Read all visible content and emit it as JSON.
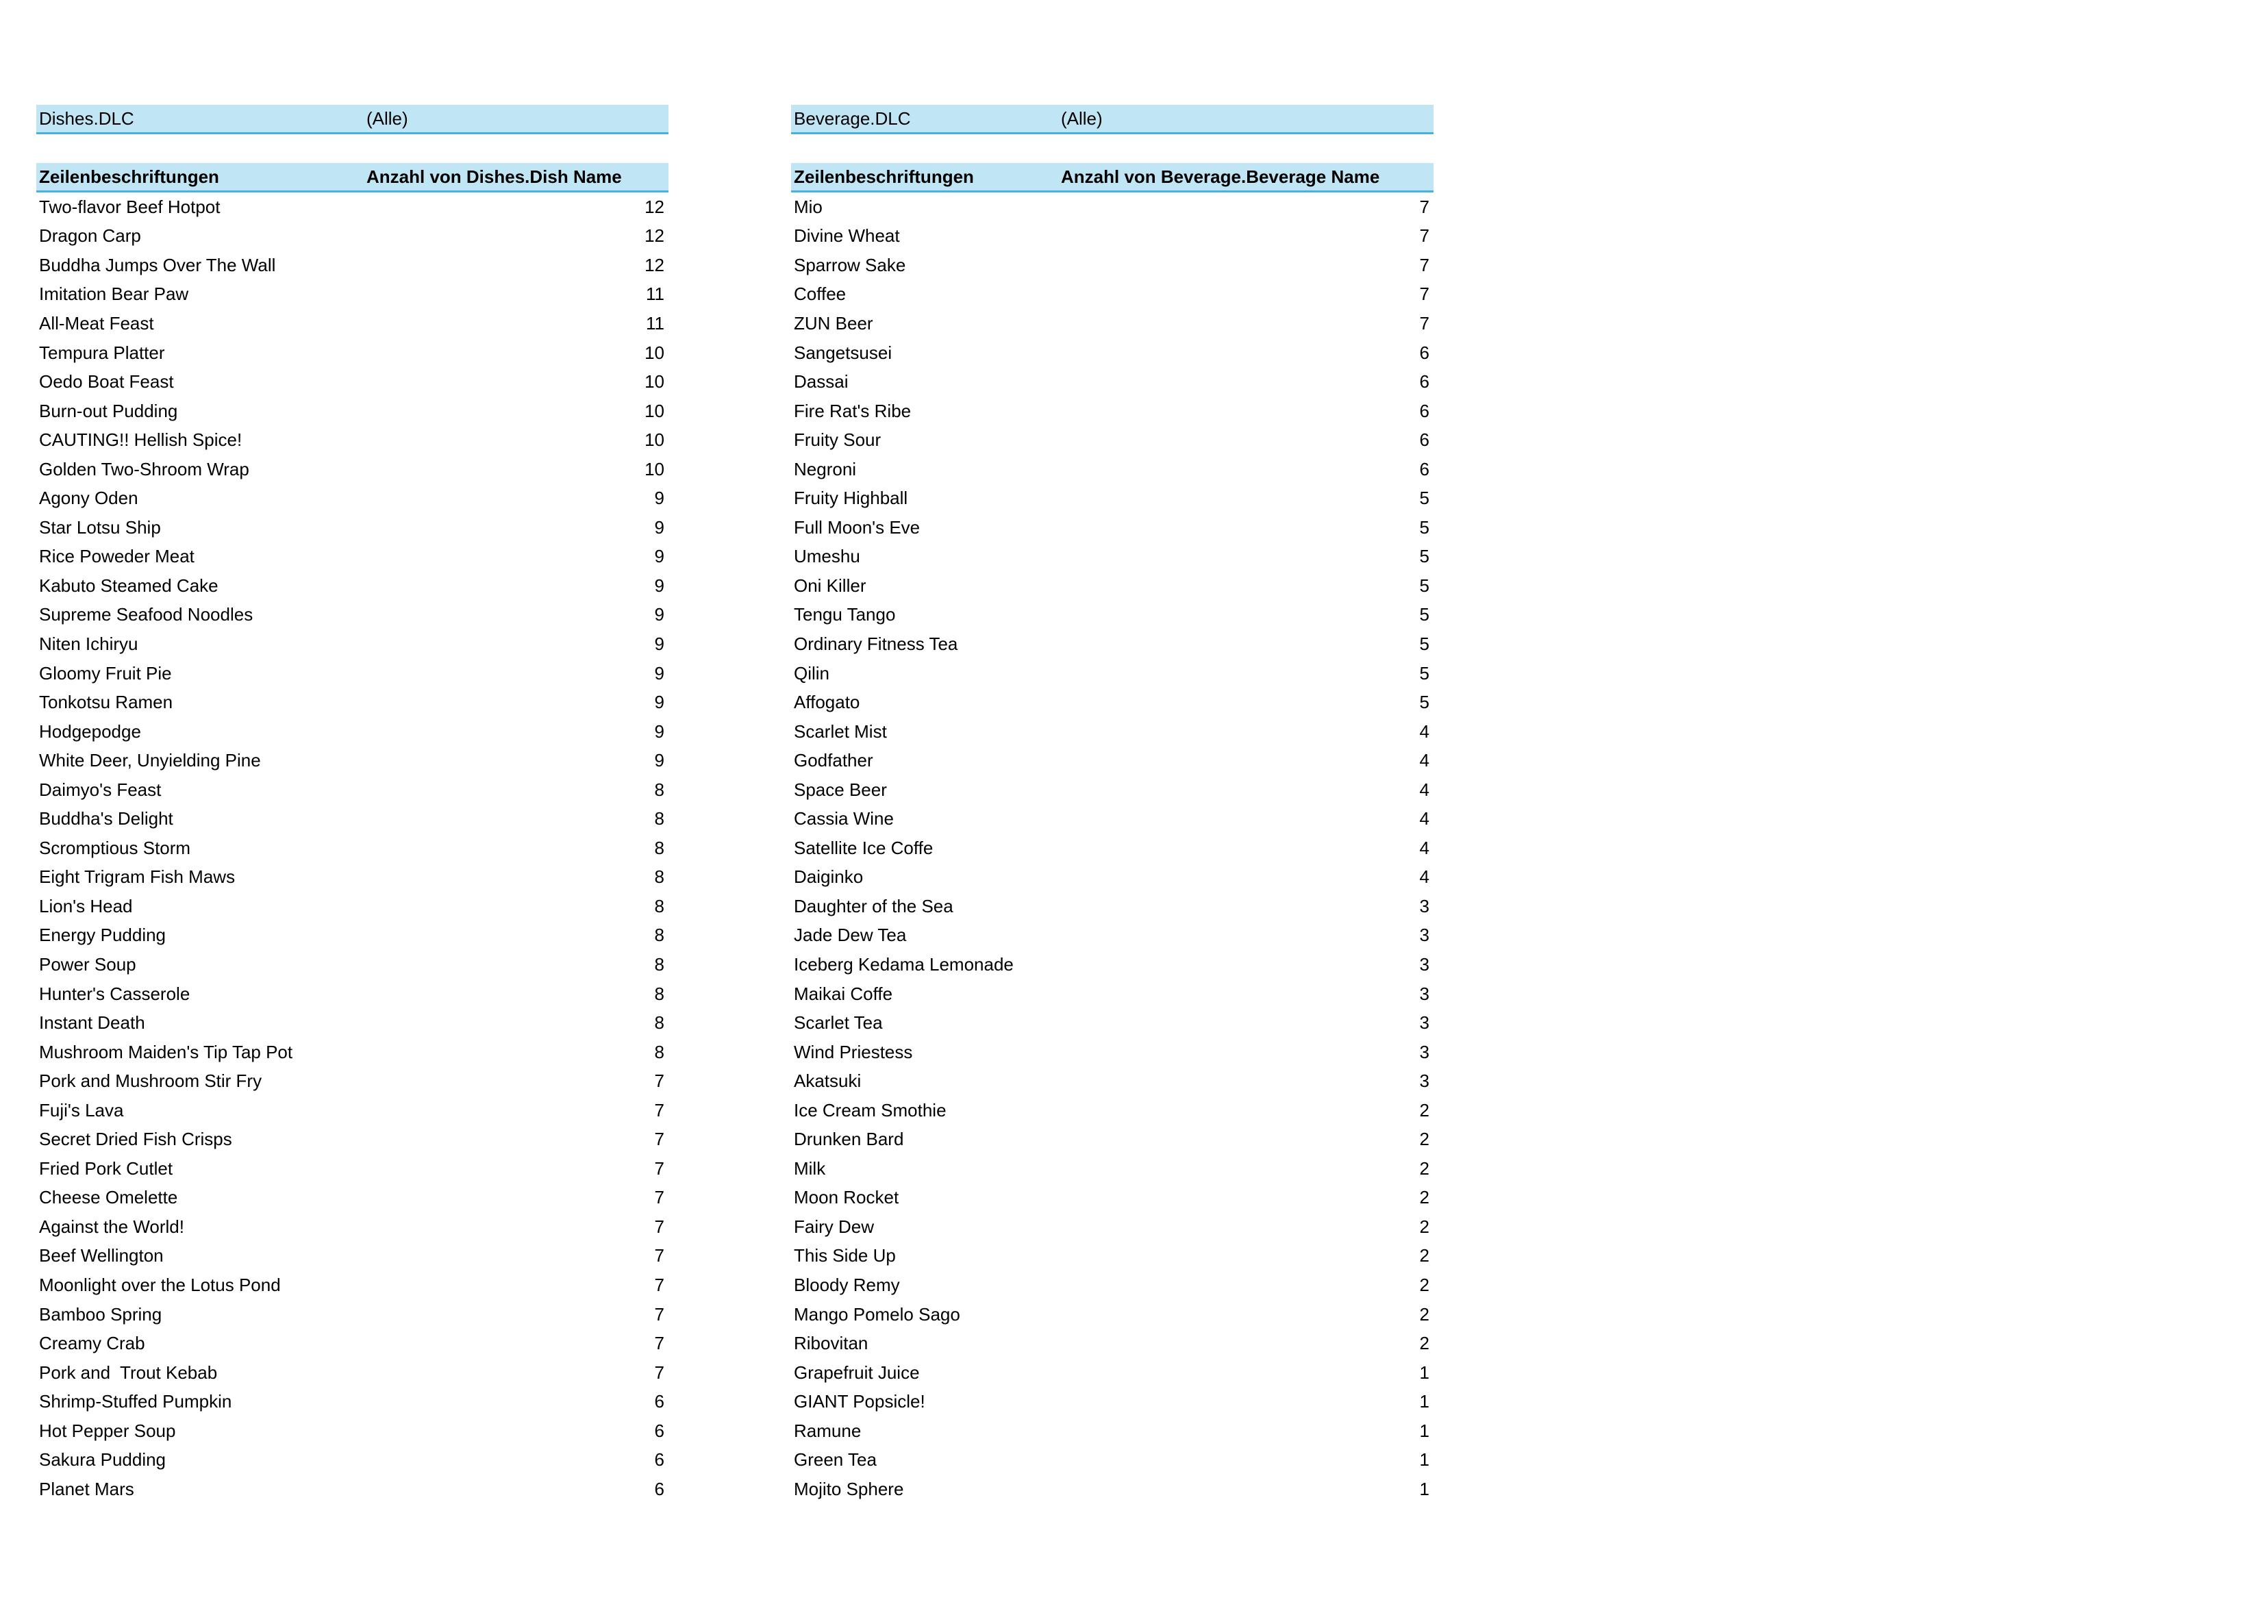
{
  "dishes": {
    "filter_label": "Dishes.DLC",
    "filter_value": "(Alle)",
    "col_label": "Zeilenbeschriftungen",
    "col_value": "Anzahl von Dishes.Dish Name",
    "rows": [
      [
        "Two-flavor Beef Hotpot",
        "12"
      ],
      [
        "Dragon Carp",
        "12"
      ],
      [
        "Buddha Jumps Over The Wall",
        "12"
      ],
      [
        "Imitation Bear Paw",
        "11"
      ],
      [
        "All-Meat Feast",
        "11"
      ],
      [
        "Tempura Platter",
        "10"
      ],
      [
        "Oedo Boat Feast",
        "10"
      ],
      [
        "Burn-out Pudding",
        "10"
      ],
      [
        "CAUTING!! Hellish Spice!",
        "10"
      ],
      [
        "Golden Two-Shroom Wrap",
        "10"
      ],
      [
        "Agony Oden",
        "9"
      ],
      [
        "Star Lotsu Ship",
        "9"
      ],
      [
        "Rice Poweder Meat",
        "9"
      ],
      [
        "Kabuto Steamed Cake",
        "9"
      ],
      [
        "Supreme Seafood Noodles",
        "9"
      ],
      [
        "Niten Ichiryu",
        "9"
      ],
      [
        "Gloomy Fruit Pie",
        "9"
      ],
      [
        "Tonkotsu Ramen",
        "9"
      ],
      [
        "Hodgepodge",
        "9"
      ],
      [
        "White Deer, Unyielding Pine",
        "9"
      ],
      [
        "Daimyo's Feast",
        "8"
      ],
      [
        "Buddha's Delight",
        "8"
      ],
      [
        "Scromptious Storm",
        "8"
      ],
      [
        "Eight Trigram Fish Maws",
        "8"
      ],
      [
        "Lion's Head",
        "8"
      ],
      [
        "Energy Pudding",
        "8"
      ],
      [
        "Power Soup",
        "8"
      ],
      [
        "Hunter's Casserole",
        "8"
      ],
      [
        "Instant Death",
        "8"
      ],
      [
        "Mushroom Maiden's Tip Tap Pot",
        "8"
      ],
      [
        "Pork and Mushroom Stir Fry",
        "7"
      ],
      [
        "Fuji's Lava",
        "7"
      ],
      [
        "Secret Dried Fish Crisps",
        "7"
      ],
      [
        "Fried Pork Cutlet",
        "7"
      ],
      [
        "Cheese Omelette",
        "7"
      ],
      [
        "Against the World!",
        "7"
      ],
      [
        "Beef Wellington",
        "7"
      ],
      [
        "Moonlight over the Lotus Pond",
        "7"
      ],
      [
        "Bamboo Spring",
        "7"
      ],
      [
        "Creamy Crab",
        "7"
      ],
      [
        "Pork and  Trout Kebab",
        "7"
      ],
      [
        "Shrimp-Stuffed Pumpkin",
        "6"
      ],
      [
        "Hot Pepper Soup",
        "6"
      ],
      [
        "Sakura Pudding",
        "6"
      ],
      [
        "Planet Mars",
        "6"
      ]
    ]
  },
  "beverages": {
    "filter_label": "Beverage.DLC",
    "filter_value": "(Alle)",
    "col_label": "Zeilenbeschriftungen",
    "col_value": "Anzahl von Beverage.Beverage Name",
    "rows": [
      [
        "Mio",
        "7"
      ],
      [
        "Divine Wheat",
        "7"
      ],
      [
        "Sparrow Sake",
        "7"
      ],
      [
        "Coffee",
        "7"
      ],
      [
        "ZUN Beer",
        "7"
      ],
      [
        "Sangetsusei",
        "6"
      ],
      [
        "Dassai",
        "6"
      ],
      [
        "Fire Rat's Ribe",
        "6"
      ],
      [
        "Fruity Sour",
        "6"
      ],
      [
        "Negroni",
        "6"
      ],
      [
        "Fruity Highball",
        "5"
      ],
      [
        "Full Moon's Eve",
        "5"
      ],
      [
        "Umeshu",
        "5"
      ],
      [
        "Oni Killer",
        "5"
      ],
      [
        "Tengu Tango",
        "5"
      ],
      [
        "Ordinary Fitness Tea",
        "5"
      ],
      [
        "Qilin",
        "5"
      ],
      [
        "Affogato",
        "5"
      ],
      [
        "Scarlet Mist",
        "4"
      ],
      [
        "Godfather",
        "4"
      ],
      [
        "Space Beer",
        "4"
      ],
      [
        "Cassia Wine",
        "4"
      ],
      [
        "Satellite Ice Coffe",
        "4"
      ],
      [
        "Daiginko",
        "4"
      ],
      [
        "Daughter of the Sea",
        "3"
      ],
      [
        "Jade Dew Tea",
        "3"
      ],
      [
        "Iceberg Kedama Lemonade",
        "3"
      ],
      [
        "Maikai Coffe",
        "3"
      ],
      [
        "Scarlet Tea",
        "3"
      ],
      [
        "Wind Priestess",
        "3"
      ],
      [
        "Akatsuki",
        "3"
      ],
      [
        "Ice Cream Smothie",
        "2"
      ],
      [
        "Drunken Bard",
        "2"
      ],
      [
        "Milk",
        "2"
      ],
      [
        "Moon Rocket",
        "2"
      ],
      [
        "Fairy Dew",
        "2"
      ],
      [
        "This Side Up",
        "2"
      ],
      [
        "Bloody Remy",
        "2"
      ],
      [
        "Mango Pomelo Sago",
        "2"
      ],
      [
        "Ribovitan",
        "2"
      ],
      [
        "Grapefruit Juice",
        "1"
      ],
      [
        "GIANT Popsicle!",
        "1"
      ],
      [
        "Ramune",
        "1"
      ],
      [
        "Green Tea",
        "1"
      ],
      [
        "Mojito Sphere",
        "1"
      ]
    ]
  },
  "colors": {
    "header_fill": "#c0e6f5",
    "header_border": "#44b3e1"
  }
}
